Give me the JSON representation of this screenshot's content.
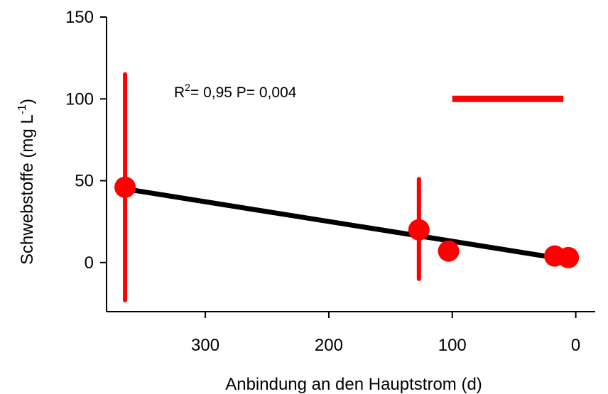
{
  "chart_data": {
    "type": "scatter",
    "title": "",
    "xlabel": "Anbindung an den Hauptstrom (d)",
    "ylabel_main": "Schwebstoffe (mg L",
    "ylabel_sup": "-1",
    "ylabel_close": ")",
    "x_reversed": true,
    "xlim": [
      380,
      -10
    ],
    "ylim": [
      -30,
      150
    ],
    "xticks": [
      300,
      200,
      100,
      0
    ],
    "yticks": [
      0,
      50,
      100,
      150
    ],
    "grid": false,
    "points": [
      {
        "x": 365,
        "y": 46,
        "err_low": -23,
        "err_high": 115
      },
      {
        "x": 127,
        "y": 20,
        "err_low": -10,
        "err_high": 51
      },
      {
        "x": 103,
        "y": 7,
        "err_low": null,
        "err_high": null
      },
      {
        "x": 17,
        "y": 4,
        "err_low": null,
        "err_high": null
      },
      {
        "x": 6,
        "y": 3,
        "err_low": null,
        "err_high": null
      }
    ],
    "regression": {
      "x1": 365,
      "y1": 45,
      "x2": 17,
      "y2": 3
    },
    "annotation": {
      "r_label": "R",
      "r_sup": "2",
      "text": "= 0,95  P= 0,004"
    },
    "reference_line": {
      "x1": 100,
      "x2": 10,
      "y": 100
    },
    "colors": {
      "points": "#ff0000",
      "regression": "#000000",
      "axes": "#000000"
    }
  }
}
